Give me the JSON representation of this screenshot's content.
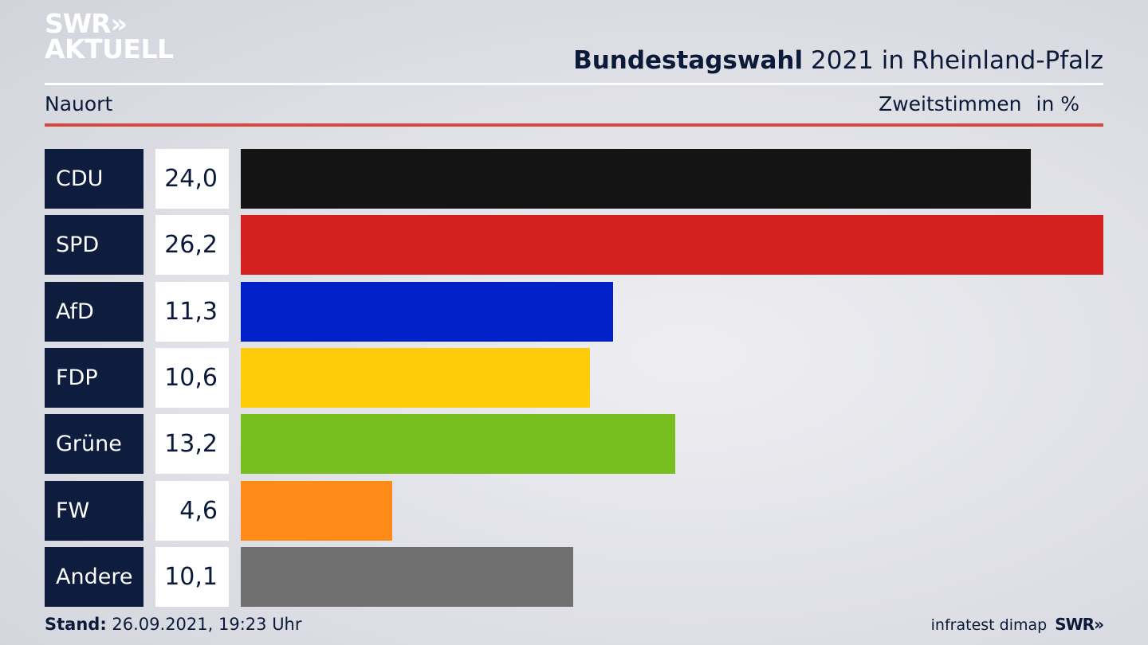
{
  "logo": {
    "line1": "SWR",
    "chevrons": "»",
    "line2": "AKTUELL"
  },
  "title": {
    "bold": "Bundestagswahl",
    "rest": "2021 in Rheinland-Pfalz"
  },
  "subtitle": {
    "location": "Nauort",
    "measure": "Zweitstimmen",
    "unit": "in %"
  },
  "chart_data": {
    "type": "bar",
    "orientation": "horizontal",
    "title": "Bundestagswahl 2021 in Rheinland-Pfalz",
    "categories": [
      "CDU",
      "SPD",
      "AfD",
      "FDP",
      "Grüne",
      "FW",
      "Andere"
    ],
    "values": [
      24.0,
      26.2,
      11.3,
      10.6,
      13.2,
      4.6,
      10.1
    ],
    "value_labels": [
      "24,0",
      "26,2",
      "11,3",
      "10,6",
      "13,2",
      "4,6",
      "10,1"
    ],
    "colors": [
      "#141414",
      "#d52020",
      "#0021c8",
      "#fecc0a",
      "#78be1e",
      "#ff8c19",
      "#707070"
    ],
    "xlim": [
      0,
      26.2
    ],
    "grid": false
  },
  "footer": {
    "stand_label": "Stand:",
    "stand_value": "26.09.2021, 19:23 Uhr",
    "source": "infratest dimap",
    "brand": "SWR",
    "brand_chevrons": "»"
  }
}
